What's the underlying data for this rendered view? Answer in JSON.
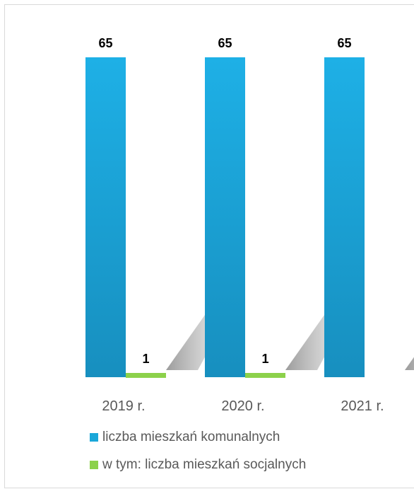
{
  "chart_data": {
    "type": "bar",
    "categories": [
      "2019 r.",
      "2020 r.",
      "2021 r."
    ],
    "series": [
      {
        "name": "liczba mieszkań komunalnych",
        "values": [
          65,
          65,
          65
        ],
        "color": "#1aa7d9"
      },
      {
        "name": "w tym: liczba mieszkań socjalnych",
        "values": [
          1,
          1,
          0
        ],
        "labels": [
          "1",
          "1",
          ""
        ],
        "color": "#8cd14a"
      }
    ],
    "value_labels": [
      [
        "65",
        "65",
        "65"
      ],
      [
        "1",
        "1",
        ""
      ]
    ],
    "ylim": [
      0,
      65
    ],
    "grid": false,
    "legend_position": "bottom",
    "bar_style": "3d-shadow"
  }
}
